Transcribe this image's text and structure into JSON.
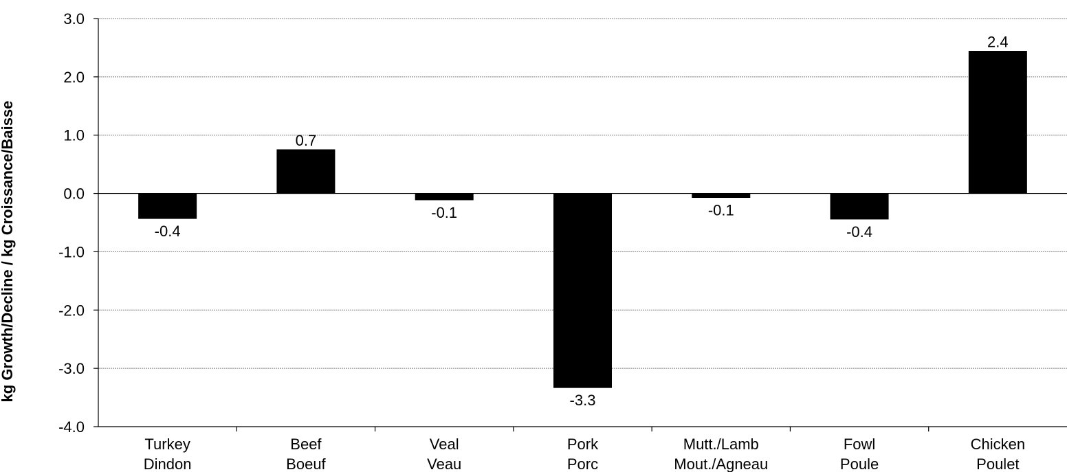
{
  "chart_data": {
    "type": "bar",
    "title": "",
    "xlabel": "",
    "ylabel": "kg Growth/Decline / kg Croissance/Baisse",
    "ylim": [
      -4.0,
      3.0
    ],
    "yticks": [
      3.0,
      2.0,
      1.0,
      0.0,
      -1.0,
      -2.0,
      -3.0,
      -4.0
    ],
    "ytick_labels": [
      "3.0",
      "2.0",
      "1.0",
      "0.0",
      "-1.0",
      "-2.0",
      "-3.0",
      "-4.0"
    ],
    "grid": true,
    "legend": "none",
    "bar_color": "#000000",
    "categories": [
      [
        "Turkey",
        "Dindon"
      ],
      [
        "Beef",
        "Boeuf"
      ],
      [
        "Veal",
        "Veau"
      ],
      [
        "Pork",
        "Porc"
      ],
      [
        "Mutt./Lamb",
        "Mout./Agneau"
      ],
      [
        "Fowl",
        "Poule"
      ],
      [
        "Chicken",
        "Poulet"
      ]
    ],
    "values": [
      -0.43,
      0.75,
      -0.11,
      -3.33,
      -0.07,
      -0.44,
      2.44
    ],
    "data_labels": [
      "-0.4",
      "0.7",
      "-0.1",
      "-3.3",
      "-0.1",
      "-0.4",
      "2.4"
    ]
  }
}
